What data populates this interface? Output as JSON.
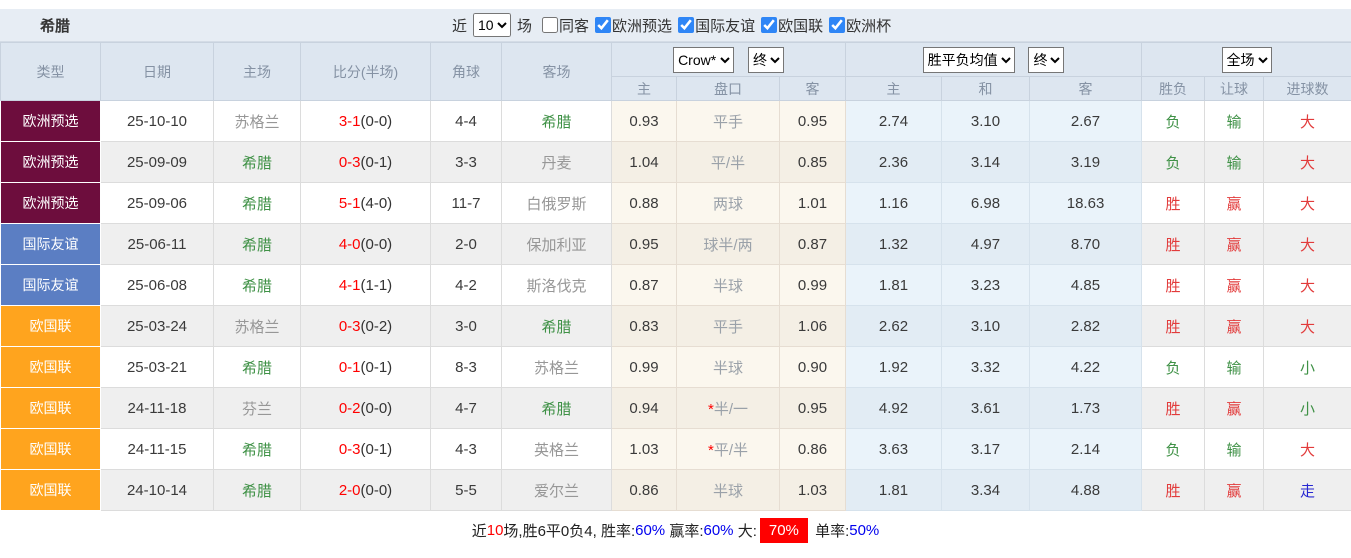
{
  "topbar": {
    "title": "希腊",
    "recent_label": "近",
    "recent_value": "10",
    "games_label": "场",
    "toggles": [
      {
        "label": "同客",
        "checked": false
      },
      {
        "label": "欧洲预选",
        "checked": true
      },
      {
        "label": "国际友谊",
        "checked": true
      },
      {
        "label": "欧国联",
        "checked": true
      },
      {
        "label": "欧洲杯",
        "checked": true
      }
    ]
  },
  "header": {
    "type": "类型",
    "date": "日期",
    "home": "主场",
    "score": "比分(半场)",
    "corner": "角球",
    "away": "客场",
    "bookmaker_select": "Crow*",
    "bookmaker_time_select": "终",
    "europe_select": "胜平负均值",
    "europe_time_select": "终",
    "fulltime_select": "全场",
    "ah_home": "主",
    "ah_line": "盘口",
    "ah_away": "客",
    "eu_home": "主",
    "eu_draw": "和",
    "eu_away": "客",
    "res_wl": "胜负",
    "res_handicap": "让球",
    "res_goals": "进球数"
  },
  "league_colors": {
    "欧洲预选": "#6d0d3d",
    "国际友谊": "#5b7ec3",
    "欧国联": "#ffa41e"
  },
  "rows": [
    {
      "league": "欧洲预选",
      "date": "25-10-10",
      "home": "苏格兰",
      "home_color": "gray",
      "score_ft": "3-1",
      "score_ht": "(0-0)",
      "corner": "4-4",
      "away": "希腊",
      "away_color": "green",
      "ah_home": "0.93",
      "line": "平手",
      "line_star": false,
      "ah_away": "0.95",
      "eu_home": "2.74",
      "eu_draw": "3.10",
      "eu_away": "2.67",
      "wl": "负",
      "wl_color": "green",
      "hc": "输",
      "hc_color": "green",
      "ou": "大",
      "ou_color": "red"
    },
    {
      "league": "欧洲预选",
      "date": "25-09-09",
      "home": "希腊",
      "home_color": "green",
      "score_ft": "0-3",
      "score_ht": "(0-1)",
      "corner": "3-3",
      "away": "丹麦",
      "away_color": "gray",
      "ah_home": "1.04",
      "line": "平/半",
      "line_star": false,
      "ah_away": "0.85",
      "eu_home": "2.36",
      "eu_draw": "3.14",
      "eu_away": "3.19",
      "wl": "负",
      "wl_color": "green",
      "hc": "输",
      "hc_color": "green",
      "ou": "大",
      "ou_color": "red"
    },
    {
      "league": "欧洲预选",
      "date": "25-09-06",
      "home": "希腊",
      "home_color": "green",
      "score_ft": "5-1",
      "score_ht": "(4-0)",
      "corner": "11-7",
      "away": "白俄罗斯",
      "away_color": "gray",
      "ah_home": "0.88",
      "line": "两球",
      "line_star": false,
      "ah_away": "1.01",
      "eu_home": "1.16",
      "eu_draw": "6.98",
      "eu_away": "18.63",
      "wl": "胜",
      "wl_color": "red",
      "hc": "赢",
      "hc_color": "red",
      "ou": "大",
      "ou_color": "red"
    },
    {
      "league": "国际友谊",
      "date": "25-06-11",
      "home": "希腊",
      "home_color": "green",
      "score_ft": "4-0",
      "score_ht": "(0-0)",
      "corner": "2-0",
      "away": "保加利亚",
      "away_color": "gray",
      "ah_home": "0.95",
      "line": "球半/两",
      "line_star": false,
      "ah_away": "0.87",
      "eu_home": "1.32",
      "eu_draw": "4.97",
      "eu_away": "8.70",
      "wl": "胜",
      "wl_color": "red",
      "hc": "赢",
      "hc_color": "red",
      "ou": "大",
      "ou_color": "red"
    },
    {
      "league": "国际友谊",
      "date": "25-06-08",
      "home": "希腊",
      "home_color": "green",
      "score_ft": "4-1",
      "score_ht": "(1-1)",
      "corner": "4-2",
      "away": "斯洛伐克",
      "away_color": "gray",
      "ah_home": "0.87",
      "line": "半球",
      "line_star": false,
      "ah_away": "0.99",
      "eu_home": "1.81",
      "eu_draw": "3.23",
      "eu_away": "4.85",
      "wl": "胜",
      "wl_color": "red",
      "hc": "赢",
      "hc_color": "red",
      "ou": "大",
      "ou_color": "red"
    },
    {
      "league": "欧国联",
      "date": "25-03-24",
      "home": "苏格兰",
      "home_color": "gray",
      "score_ft": "0-3",
      "score_ht": "(0-2)",
      "corner": "3-0",
      "away": "希腊",
      "away_color": "green",
      "ah_home": "0.83",
      "line": "平手",
      "line_star": false,
      "ah_away": "1.06",
      "eu_home": "2.62",
      "eu_draw": "3.10",
      "eu_away": "2.82",
      "wl": "胜",
      "wl_color": "red",
      "hc": "赢",
      "hc_color": "red",
      "ou": "大",
      "ou_color": "red"
    },
    {
      "league": "欧国联",
      "date": "25-03-21",
      "home": "希腊",
      "home_color": "green",
      "score_ft": "0-1",
      "score_ht": "(0-1)",
      "corner": "8-3",
      "away": "苏格兰",
      "away_color": "gray",
      "ah_home": "0.99",
      "line": "半球",
      "line_star": false,
      "ah_away": "0.90",
      "eu_home": "1.92",
      "eu_draw": "3.32",
      "eu_away": "4.22",
      "wl": "负",
      "wl_color": "green",
      "hc": "输",
      "hc_color": "green",
      "ou": "小",
      "ou_color": "green"
    },
    {
      "league": "欧国联",
      "date": "24-11-18",
      "home": "芬兰",
      "home_color": "gray",
      "score_ft": "0-2",
      "score_ht": "(0-0)",
      "corner": "4-7",
      "away": "希腊",
      "away_color": "green",
      "ah_home": "0.94",
      "line": "半/一",
      "line_star": true,
      "ah_away": "0.95",
      "eu_home": "4.92",
      "eu_draw": "3.61",
      "eu_away": "1.73",
      "wl": "胜",
      "wl_color": "red",
      "hc": "赢",
      "hc_color": "red",
      "ou": "小",
      "ou_color": "green"
    },
    {
      "league": "欧国联",
      "date": "24-11-15",
      "home": "希腊",
      "home_color": "green",
      "score_ft": "0-3",
      "score_ht": "(0-1)",
      "corner": "4-3",
      "away": "英格兰",
      "away_color": "gray",
      "ah_home": "1.03",
      "line": "平/半",
      "line_star": true,
      "ah_away": "0.86",
      "eu_home": "3.63",
      "eu_draw": "3.17",
      "eu_away": "2.14",
      "wl": "负",
      "wl_color": "green",
      "hc": "输",
      "hc_color": "green",
      "ou": "大",
      "ou_color": "red"
    },
    {
      "league": "欧国联",
      "date": "24-10-14",
      "home": "希腊",
      "home_color": "green",
      "score_ft": "2-0",
      "score_ht": "(0-0)",
      "corner": "5-5",
      "away": "爱尔兰",
      "away_color": "gray",
      "ah_home": "0.86",
      "line": "半球",
      "line_star": false,
      "ah_away": "1.03",
      "eu_home": "1.81",
      "eu_draw": "3.34",
      "eu_away": "4.88",
      "wl": "胜",
      "wl_color": "red",
      "hc": "赢",
      "hc_color": "red",
      "ou": "走",
      "ou_color": "blue"
    }
  ],
  "footer": {
    "segments": [
      {
        "text": "近",
        "style": "black"
      },
      {
        "text": "10",
        "style": "red"
      },
      {
        "text": "场,胜6平0负4, ",
        "style": "black"
      },
      {
        "text": "胜率:",
        "style": "black"
      },
      {
        "text": "60%",
        "style": "blue"
      },
      {
        "text": " 赢率:",
        "style": "black"
      },
      {
        "text": "60%",
        "style": "blue"
      },
      {
        "text": " 大:",
        "style": "black"
      },
      {
        "text": "70%",
        "style": "badge"
      },
      {
        "text": " 单率:",
        "style": "black"
      },
      {
        "text": "50%",
        "style": "blue"
      }
    ]
  }
}
